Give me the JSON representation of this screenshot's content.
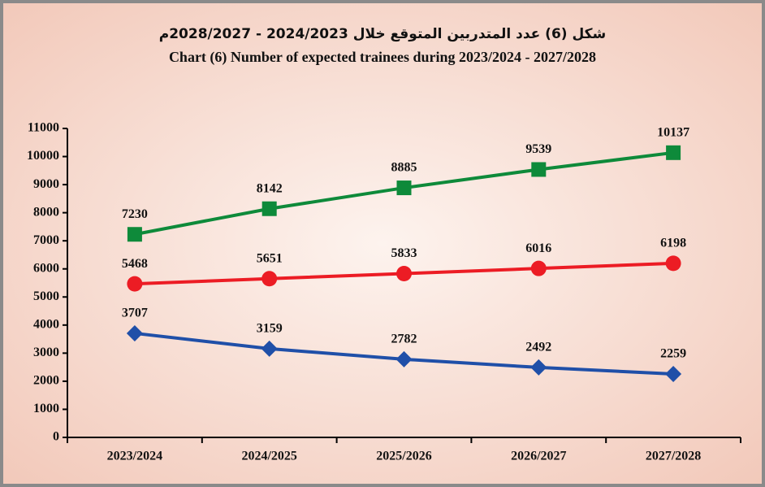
{
  "chart_data": {
    "type": "line",
    "title": "شكل (6) عدد المتدربين المتوقع خلال 2024/2023 - 2028/2027م",
    "subtitle": "Chart (6) Number of expected trainees during 2023/2024 - 2027/2028",
    "categories": [
      "2023/2024",
      "2024/2025",
      "2025/2026",
      "2026/2027",
      "2027/2028"
    ],
    "series": [
      {
        "color": "#0e8a3a",
        "marker": "square",
        "values": [
          7230,
          8142,
          8885,
          9539,
          10137
        ]
      },
      {
        "color": "#ec1c24",
        "marker": "circle",
        "values": [
          5468,
          5651,
          5833,
          6016,
          6198
        ]
      },
      {
        "color": "#1f4fa8",
        "marker": "diamond",
        "values": [
          3707,
          3159,
          2782,
          2492,
          2259
        ]
      }
    ],
    "ylim": [
      0,
      11000
    ],
    "yticks": [
      0,
      1000,
      2000,
      3000,
      4000,
      5000,
      6000,
      7000,
      8000,
      9000,
      10000,
      11000
    ],
    "grid": false
  }
}
